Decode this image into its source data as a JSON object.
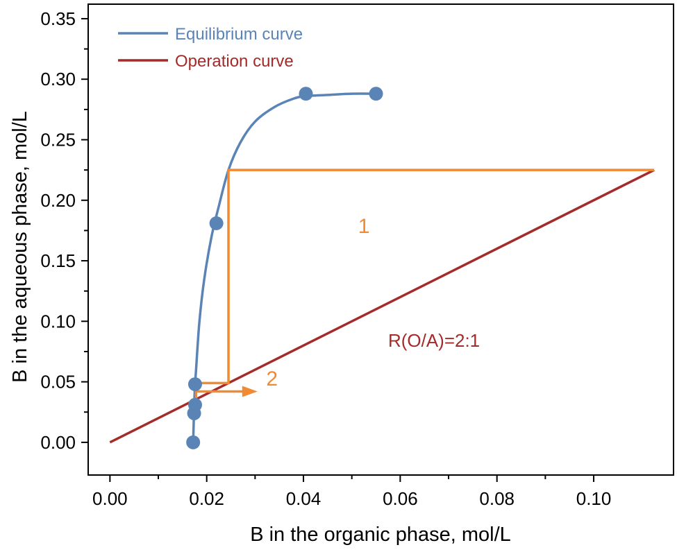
{
  "chart_data": {
    "type": "scatter",
    "xlabel": "B in the organic phase, mol/L",
    "ylabel": "B in the aqueous phase, mol/L",
    "xlim": [
      -0.0045,
      0.1165
    ],
    "ylim": [
      -0.027,
      0.362
    ],
    "x_ticks": [
      0.0,
      0.02,
      0.04,
      0.06,
      0.08,
      0.1
    ],
    "x_tick_labels": [
      "0.00",
      "0.02",
      "0.04",
      "0.06",
      "0.08",
      "0.10"
    ],
    "y_ticks": [
      0.0,
      0.05,
      0.1,
      0.15,
      0.2,
      0.25,
      0.3,
      0.35
    ],
    "y_tick_labels": [
      "0.00",
      "0.05",
      "0.10",
      "0.15",
      "0.20",
      "0.25",
      "0.30",
      "0.35"
    ],
    "grid": false,
    "legend_position": "top-left",
    "series": [
      {
        "name": "Equilibrium curve",
        "color": "#5a84b5",
        "points": [
          {
            "x": 0.0172,
            "y": 0.0
          },
          {
            "x": 0.0174,
            "y": 0.024
          },
          {
            "x": 0.0176,
            "y": 0.031
          },
          {
            "x": 0.0176,
            "y": 0.048
          },
          {
            "x": 0.022,
            "y": 0.181
          },
          {
            "x": 0.0405,
            "y": 0.288
          },
          {
            "x": 0.055,
            "y": 0.288
          }
        ],
        "curve": [
          {
            "x": 0.0172,
            "y": 0.0
          },
          {
            "x": 0.0175,
            "y": 0.04
          },
          {
            "x": 0.0178,
            "y": 0.06
          },
          {
            "x": 0.0185,
            "y": 0.1
          },
          {
            "x": 0.0195,
            "y": 0.135
          },
          {
            "x": 0.021,
            "y": 0.17
          },
          {
            "x": 0.0225,
            "y": 0.195
          },
          {
            "x": 0.0245,
            "y": 0.225
          },
          {
            "x": 0.027,
            "y": 0.248
          },
          {
            "x": 0.03,
            "y": 0.265
          },
          {
            "x": 0.034,
            "y": 0.277
          },
          {
            "x": 0.038,
            "y": 0.284
          },
          {
            "x": 0.0405,
            "y": 0.286
          },
          {
            "x": 0.045,
            "y": 0.287
          },
          {
            "x": 0.05,
            "y": 0.288
          },
          {
            "x": 0.055,
            "y": 0.288
          }
        ]
      },
      {
        "name": "Operation curve",
        "color": "#a52a2a",
        "line": [
          {
            "x": 0.0,
            "y": 0.0
          },
          {
            "x": 0.1125,
            "y": 0.225
          }
        ]
      }
    ],
    "stages": {
      "color": "#f08a33",
      "path": [
        {
          "x": 0.1125,
          "y": 0.225
        },
        {
          "x": 0.0245,
          "y": 0.225
        },
        {
          "x": 0.0245,
          "y": 0.049
        },
        {
          "x": 0.0178,
          "y": 0.049
        },
        {
          "x": 0.0178,
          "y": 0.035
        }
      ],
      "arrow": [
        {
          "x": 0.0178,
          "y": 0.042
        },
        {
          "x": 0.0305,
          "y": 0.042
        }
      ],
      "labels": [
        {
          "text": "1",
          "x": 0.0525,
          "y": 0.173
        },
        {
          "text": "2",
          "x": 0.0335,
          "y": 0.047
        }
      ]
    },
    "annotations": [
      {
        "text": "R(O/A)=2:1",
        "x": 0.0575,
        "y": 0.079,
        "color": "#a52a2a"
      }
    ]
  }
}
